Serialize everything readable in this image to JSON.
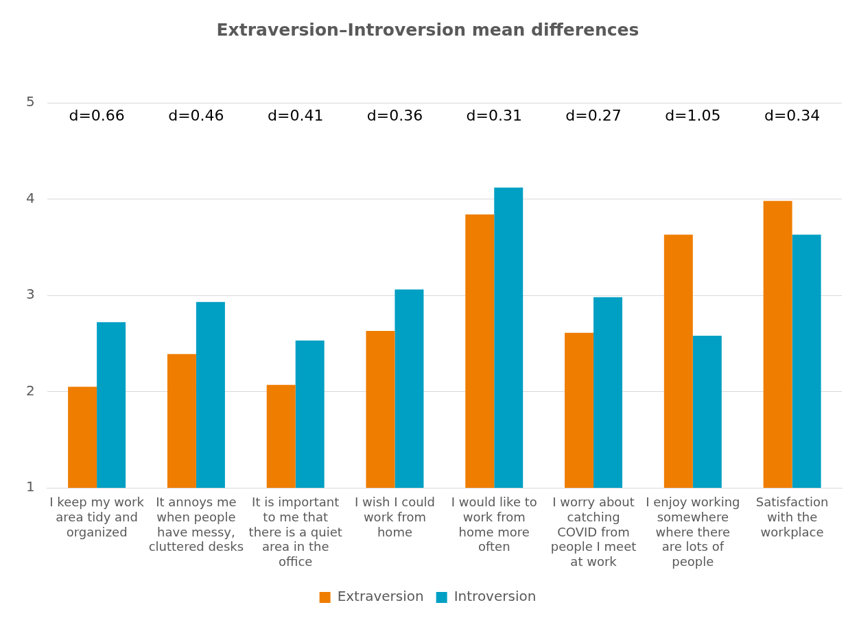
{
  "chart_data": {
    "type": "bar",
    "title": "Extraversion–Introversion mean differences",
    "categories": [
      "I keep my work area tidy and organized",
      "It annoys me when people have messy, cluttered desks",
      "It is important to me that there is a quiet area in the office",
      "I wish I could work from home",
      "I would like to work from home more often",
      "I worry about catching COVID from people I meet at work",
      "I enjoy working somewhere where there are lots of people",
      "Satisfaction with the workplace"
    ],
    "series": [
      {
        "name": "Extraversion",
        "color": "#ef7d00",
        "values": [
          2.05,
          2.39,
          2.07,
          2.63,
          3.84,
          2.61,
          3.63,
          3.98
        ]
      },
      {
        "name": "Introversion",
        "color": "#009fc4",
        "values": [
          2.72,
          2.93,
          2.53,
          3.06,
          4.12,
          2.98,
          2.58,
          3.63
        ]
      }
    ],
    "ylim": [
      1,
      5
    ],
    "yticks": [
      1,
      2,
      3,
      4,
      5
    ],
    "grid": "y",
    "legend": "bottom",
    "annotations": [
      "d=0.66",
      "d=0.46",
      "d=0.41",
      "d=0.36",
      "d=0.31",
      "d=0.27",
      "d=1.05",
      "d=0.34"
    ]
  }
}
